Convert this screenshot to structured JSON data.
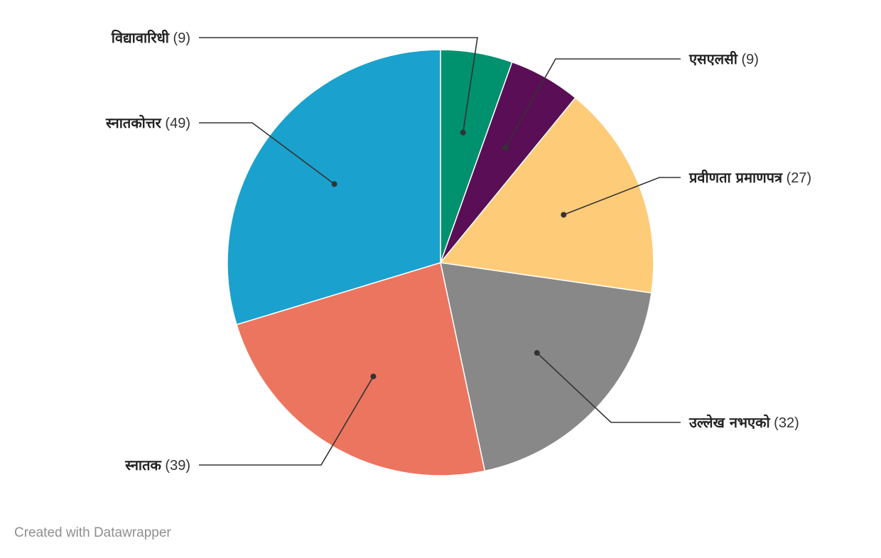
{
  "chart_data": {
    "type": "pie",
    "slices": [
      {
        "label": "विद्यावारिधी",
        "value": 9,
        "color": "#00916e"
      },
      {
        "label": "एसएलसी",
        "value": 9,
        "color": "#5a0e55"
      },
      {
        "label": "प्रवीणता प्रमाणपत्र",
        "value": 27,
        "color": "#fecb78"
      },
      {
        "label": "उल्लेख नभएको",
        "value": 32,
        "color": "#888888"
      },
      {
        "label": "स्नातक",
        "value": 39,
        "color": "#ec755f"
      },
      {
        "label": "स्नातकोत्तर",
        "value": 49,
        "color": "#1aa1cd"
      }
    ],
    "start_angle_deg": 0,
    "direction": "clockwise"
  },
  "credit": "Created with Datawrapper"
}
